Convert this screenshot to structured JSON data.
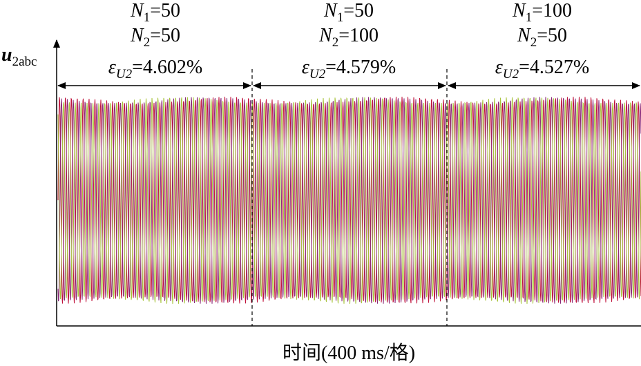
{
  "y_label": [
    {
      "text": "u",
      "italic": true,
      "bold": true
    },
    {
      "text": "2abc",
      "sub": true
    }
  ],
  "x_label": "时间(400 ms/格)",
  "segments": [
    {
      "lines": [
        [
          {
            "text": "N",
            "italic": true
          },
          {
            "text": "1",
            "sub": true
          },
          {
            "text": "=50"
          }
        ],
        [
          {
            "text": "N",
            "italic": true
          },
          {
            "text": "2",
            "sub": true
          },
          {
            "text": "=50"
          }
        ],
        [
          {
            "text": "ε",
            "italic": true
          },
          {
            "text": "U2",
            "sub": true,
            "italic": true
          },
          {
            "text": "=4.602%"
          }
        ]
      ]
    },
    {
      "lines": [
        [
          {
            "text": "N",
            "italic": true
          },
          {
            "text": "1",
            "sub": true
          },
          {
            "text": "=50"
          }
        ],
        [
          {
            "text": "N",
            "italic": true
          },
          {
            "text": "2",
            "sub": true
          },
          {
            "text": "=100"
          }
        ],
        [
          {
            "text": "ε",
            "italic": true
          },
          {
            "text": "U2",
            "sub": true,
            "italic": true
          },
          {
            "text": "=4.579%"
          }
        ]
      ]
    },
    {
      "lines": [
        [
          {
            "text": "N",
            "italic": true
          },
          {
            "text": "1",
            "sub": true
          },
          {
            "text": "=100"
          }
        ],
        [
          {
            "text": "N",
            "italic": true
          },
          {
            "text": "2",
            "sub": true
          },
          {
            "text": "=50"
          }
        ],
        [
          {
            "text": "ε",
            "italic": true
          },
          {
            "text": "U2",
            "sub": true,
            "italic": true
          },
          {
            "text": "=4.527%"
          }
        ]
      ]
    }
  ],
  "wave_colors": [
    "#c0143c",
    "#8a2a7a",
    "#a8c43c"
  ]
}
